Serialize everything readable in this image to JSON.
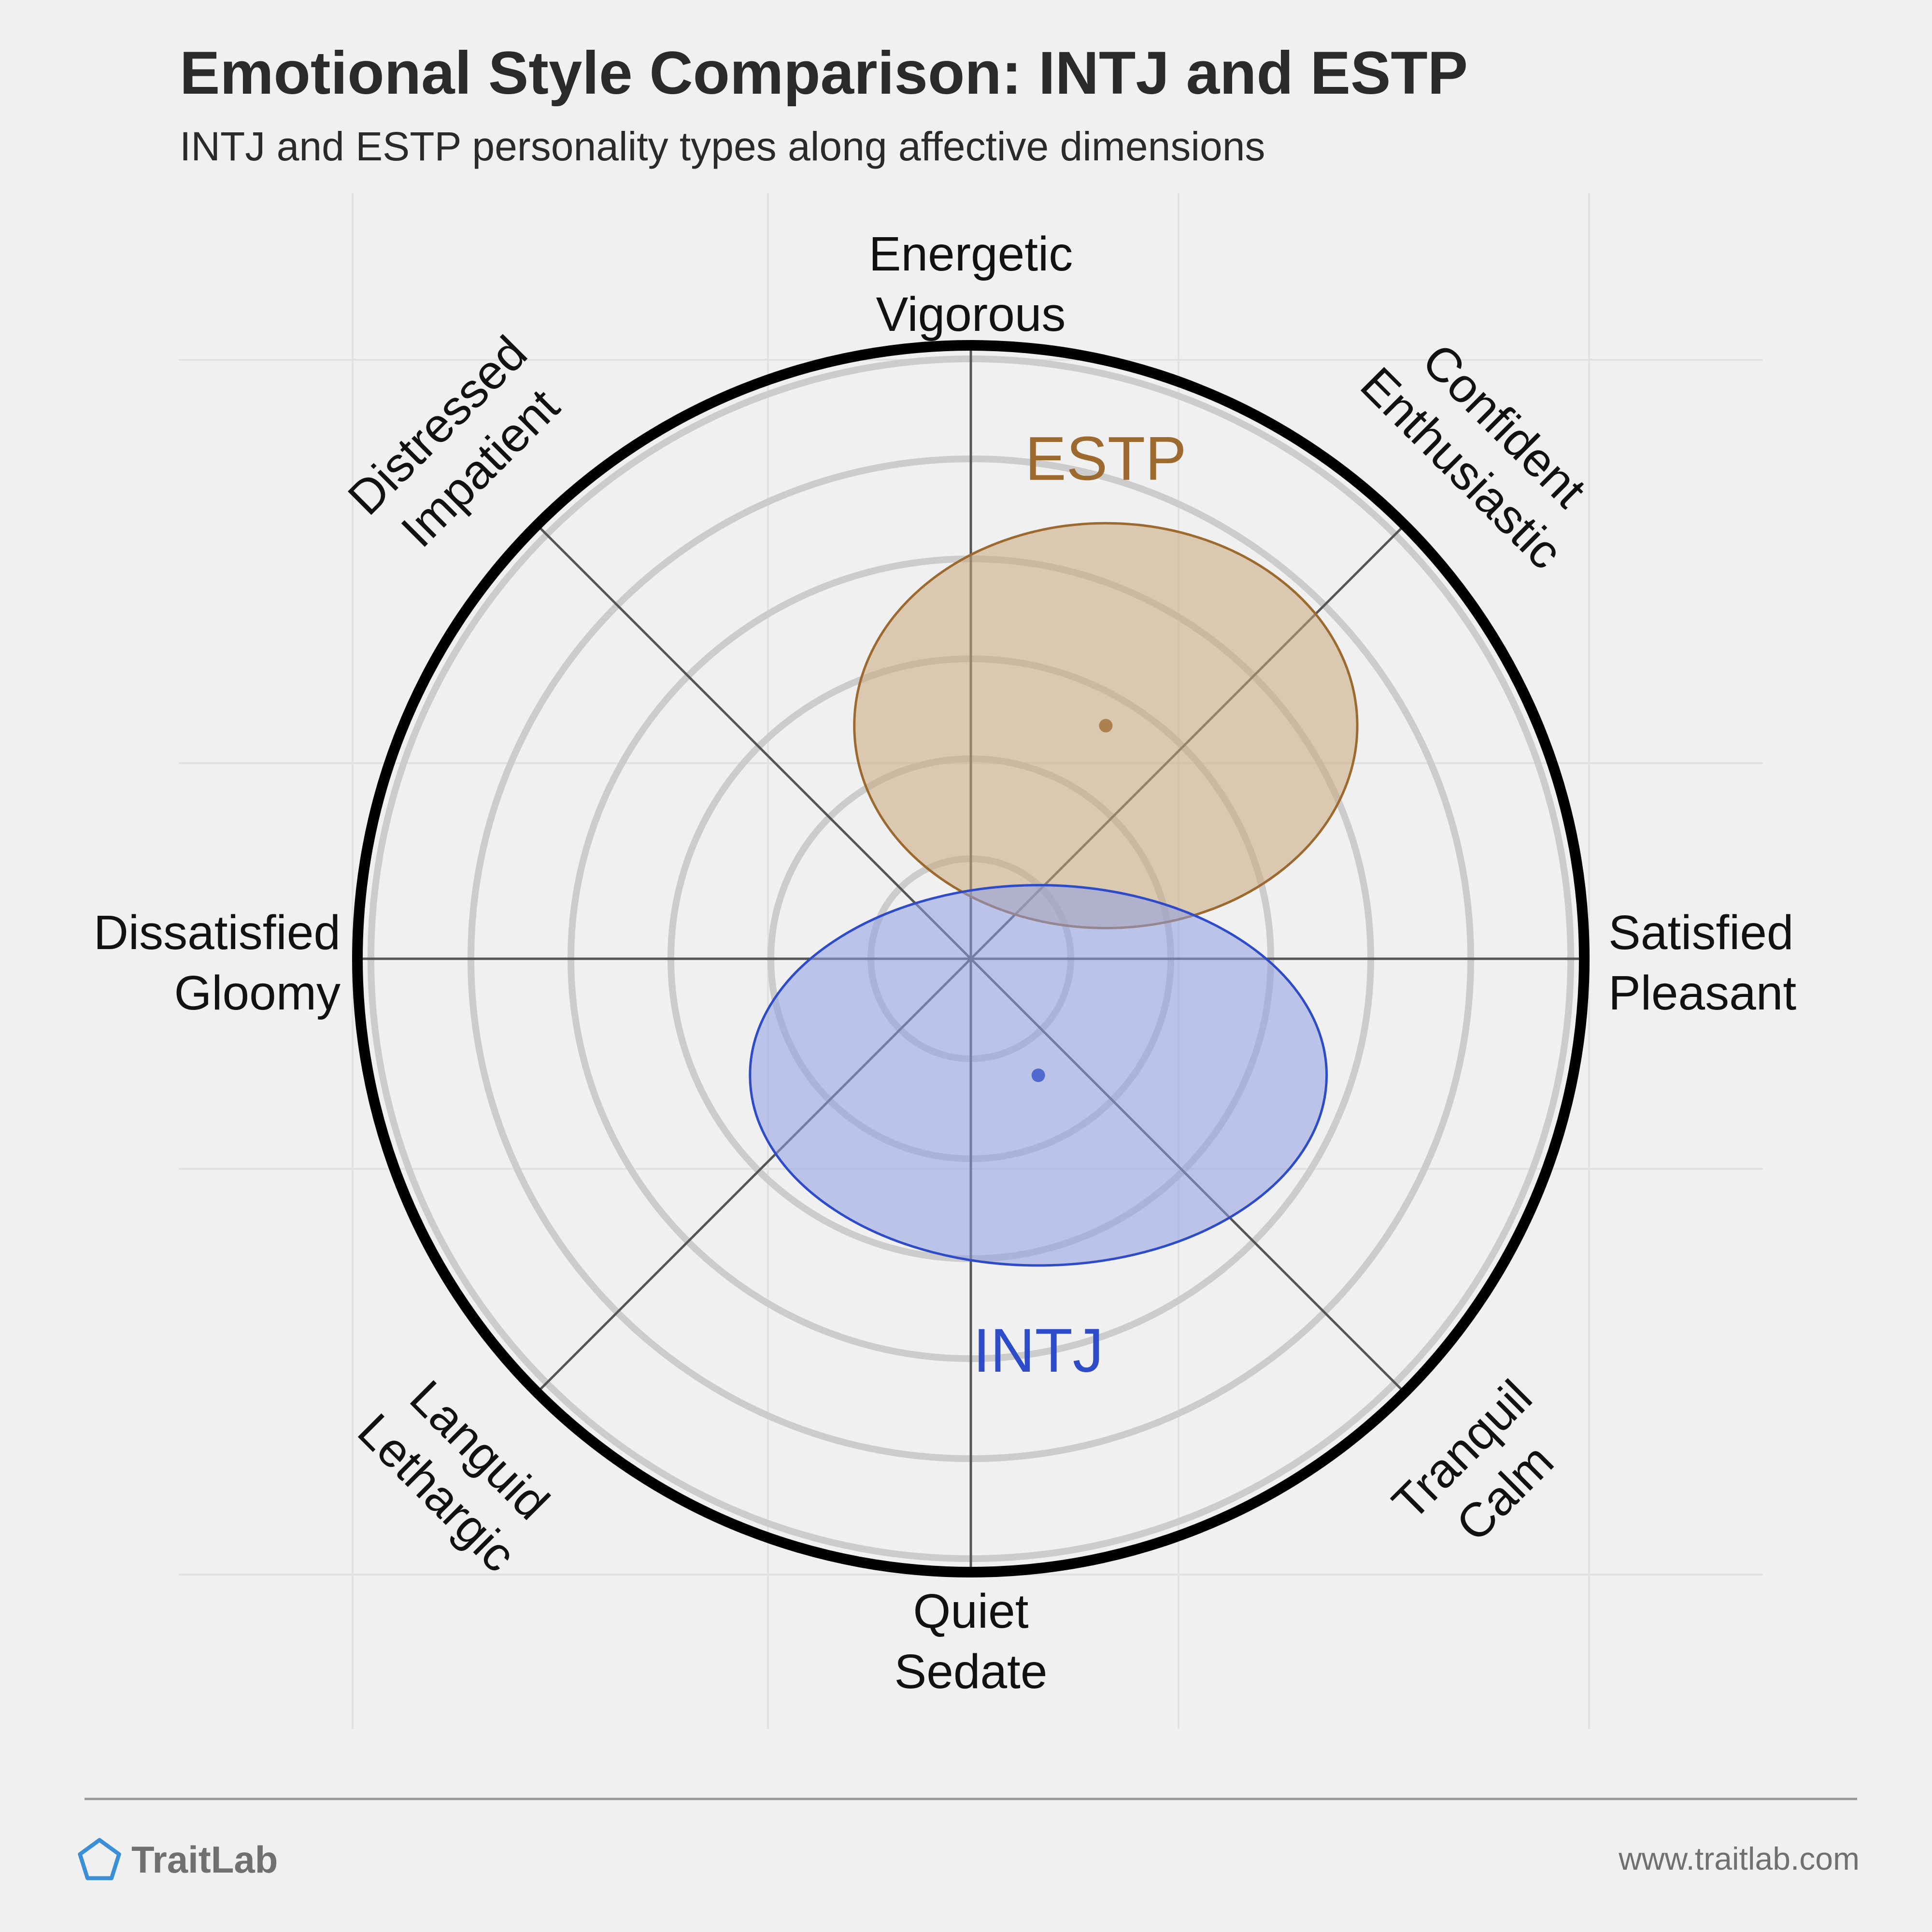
{
  "title": "Emotional Style Comparison: INTJ and ESTP",
  "subtitle": "INTJ and ESTP personality types along affective dimensions",
  "chart_data": {
    "type": "scatter",
    "title": "Emotional Style Comparison: INTJ and ESTP",
    "subtitle": "INTJ and ESTP personality types along affective dimensions",
    "axes": [
      {
        "label_lines": [
          "Energetic",
          "Vigorous"
        ],
        "angle": 90
      },
      {
        "label_lines": [
          "Confident",
          "Enthusiastic"
        ],
        "angle": 45
      },
      {
        "label_lines": [
          "Satisfied",
          "Pleasant"
        ],
        "angle": 0
      },
      {
        "label_lines": [
          "Tranquil",
          "Calm"
        ],
        "angle": -45
      },
      {
        "label_lines": [
          "Quiet",
          "Sedate"
        ],
        "angle": -90
      },
      {
        "label_lines": [
          "Languid",
          "Lethargic"
        ],
        "angle": -135
      },
      {
        "label_lines": [
          "Dissatisfied",
          "Gloomy"
        ],
        "angle": 180
      },
      {
        "label_lines": [
          "Distressed",
          "Impatient"
        ],
        "angle": 135
      }
    ],
    "x_range": [
      -1,
      1
    ],
    "y_range": [
      -1,
      1
    ],
    "rings": 6,
    "series": [
      {
        "name": "ESTP",
        "x": 0.22,
        "y": 0.38,
        "spread_x": 0.41,
        "spread_y": 0.33,
        "color": "#9c6a2e",
        "fill": "#c8a77d"
      },
      {
        "name": "INTJ",
        "x": 0.11,
        "y": -0.19,
        "spread_x": 0.47,
        "spread_y": 0.31,
        "color": "#2e4cc8",
        "fill": "#8f9fe4"
      }
    ]
  },
  "footer": {
    "brand": "TraitLab",
    "url": "www.traitlab.com"
  }
}
